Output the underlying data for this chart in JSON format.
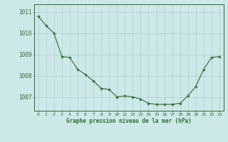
{
  "x": [
    0,
    1,
    2,
    3,
    4,
    5,
    6,
    7,
    8,
    9,
    10,
    11,
    12,
    13,
    14,
    15,
    16,
    17,
    18,
    19,
    20,
    21,
    22,
    23
  ],
  "y": [
    1010.8,
    1010.35,
    1010.0,
    1008.9,
    1008.85,
    1008.3,
    1008.05,
    1007.75,
    1007.4,
    1007.35,
    1007.0,
    1007.05,
    1007.0,
    1006.9,
    1006.7,
    1006.65,
    1006.65,
    1006.65,
    1006.7,
    1007.05,
    1007.5,
    1008.3,
    1008.85,
    1008.9
  ],
  "line_color": "#2d6b2d",
  "marker_color": "#2d6b2d",
  "bg_color": "#cce8e8",
  "grid_color": "#b0cece",
  "ylabel_ticks": [
    1007,
    1008,
    1009,
    1010,
    1011
  ],
  "xlabel_ticks": [
    0,
    1,
    2,
    3,
    4,
    5,
    6,
    7,
    8,
    9,
    10,
    11,
    12,
    13,
    14,
    15,
    16,
    17,
    18,
    19,
    20,
    21,
    22,
    23
  ],
  "ylim": [
    1006.35,
    1011.35
  ],
  "xlim": [
    -0.5,
    23.5
  ],
  "xlabel": "Graphe pression niveau de la mer (hPa)",
  "xlabel_color": "#2d6b2d",
  "tick_color": "#2d6b2d",
  "spine_color": "#2d6b2d"
}
